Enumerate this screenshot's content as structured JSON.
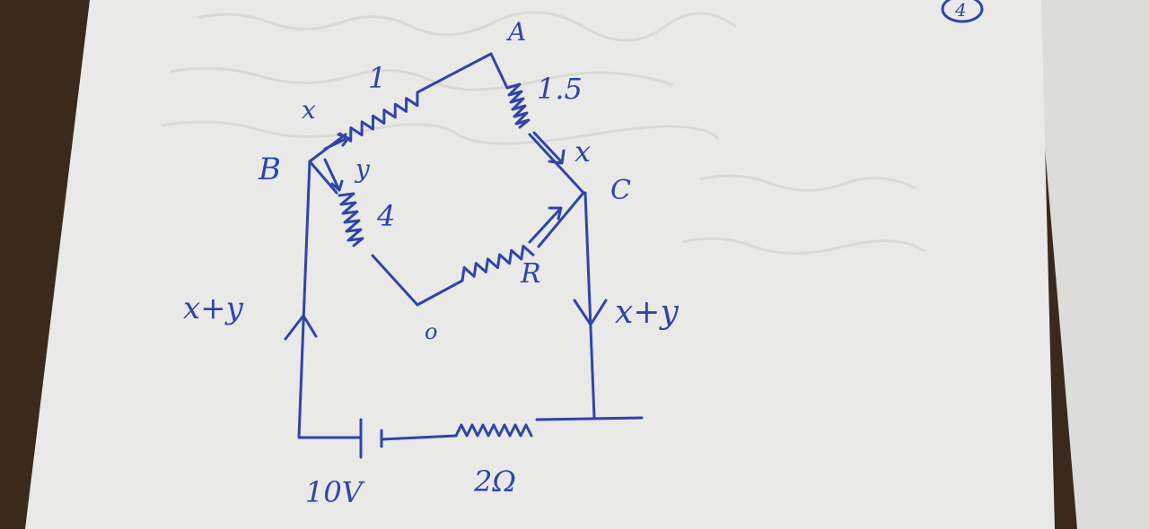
{
  "page_number": "4",
  "nodes": {
    "A": "A",
    "B": "B",
    "C": "C",
    "O": "o"
  },
  "resistors": {
    "AB": "1",
    "AC": "1.5",
    "BO": "4",
    "OC": "R",
    "battery_series": "2Ω"
  },
  "currents": {
    "x_left": "x",
    "x_right": "x",
    "y": "y",
    "total_left": "x+y",
    "total_right": "x+y"
  },
  "battery": {
    "emf": "10V"
  },
  "colors": {
    "ink": "#2f45a8",
    "paper": "#e9e9e7",
    "background": "#3a2a1e"
  }
}
